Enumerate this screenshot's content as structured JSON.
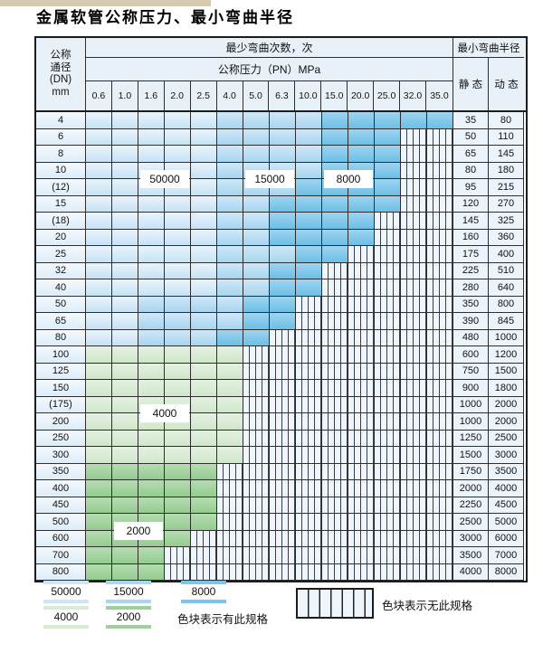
{
  "title": "金属软管公称压力、最小弯曲半径",
  "table": {
    "header": {
      "dn": [
        "公称",
        "通径",
        "(DN)",
        "mm"
      ],
      "bend_times": "最少弯曲次数，次",
      "pressure_unit": "公称压力（PN）MPa",
      "min_radius": "最小弯曲半径",
      "static_label": "静 态",
      "dynamic_label": "动 态",
      "pressures": [
        "0.6",
        "1.0",
        "1.6",
        "2.0",
        "2.5",
        "4.0",
        "5.0",
        "6.3",
        "10.0",
        "15.0",
        "20.0",
        "25.0",
        "32.0",
        "35.0"
      ]
    },
    "band_legend_meaning": {
      "b50": "50000",
      "b15": "15000",
      "b8": "8000",
      "g4": "4000",
      "g2": "2000",
      "x": "无此规格"
    },
    "rows": [
      {
        "dn": "4",
        "static": "35",
        "dynamic": "80",
        "bands": [
          [
            "b50",
            5
          ],
          [
            "b15",
            4
          ],
          [
            "b8",
            5
          ]
        ]
      },
      {
        "dn": "6",
        "static": "50",
        "dynamic": "110",
        "bands": [
          [
            "b50",
            5
          ],
          [
            "b15",
            4
          ],
          [
            "b8",
            3
          ],
          [
            "x",
            2
          ]
        ]
      },
      {
        "dn": "8",
        "static": "65",
        "dynamic": "145",
        "bands": [
          [
            "b50",
            5
          ],
          [
            "b15",
            4
          ],
          [
            "b8",
            3
          ],
          [
            "x",
            2
          ]
        ]
      },
      {
        "dn": "10",
        "static": "80",
        "dynamic": "180",
        "bands": [
          [
            "b50",
            5
          ],
          [
            "b15",
            4
          ],
          [
            "b8",
            3
          ],
          [
            "x",
            2
          ]
        ]
      },
      {
        "dn": "(12)",
        "static": "95",
        "dynamic": "215",
        "bands": [
          [
            "b50",
            5
          ],
          [
            "b15",
            3
          ],
          [
            "b8",
            4
          ],
          [
            "x",
            2
          ]
        ]
      },
      {
        "dn": "15",
        "static": "120",
        "dynamic": "270",
        "bands": [
          [
            "b50",
            5
          ],
          [
            "b15",
            2
          ],
          [
            "b8",
            5
          ],
          [
            "x",
            2
          ]
        ]
      },
      {
        "dn": "(18)",
        "static": "145",
        "dynamic": "325",
        "bands": [
          [
            "b50",
            5
          ],
          [
            "b15",
            2
          ],
          [
            "b8",
            4
          ],
          [
            "x",
            3
          ]
        ]
      },
      {
        "dn": "20",
        "static": "160",
        "dynamic": "360",
        "bands": [
          [
            "b50",
            5
          ],
          [
            "b15",
            2
          ],
          [
            "b8",
            4
          ],
          [
            "x",
            3
          ]
        ]
      },
      {
        "dn": "25",
        "static": "175",
        "dynamic": "400",
        "bands": [
          [
            "b50",
            5
          ],
          [
            "b15",
            3
          ],
          [
            "b8",
            2
          ],
          [
            "x",
            4
          ]
        ]
      },
      {
        "dn": "32",
        "static": "225",
        "dynamic": "510",
        "bands": [
          [
            "b50",
            5
          ],
          [
            "b15",
            2
          ],
          [
            "b8",
            2
          ],
          [
            "x",
            5
          ]
        ]
      },
      {
        "dn": "40",
        "static": "280",
        "dynamic": "640",
        "bands": [
          [
            "b50",
            5
          ],
          [
            "b15",
            2
          ],
          [
            "b8",
            2
          ],
          [
            "x",
            5
          ]
        ]
      },
      {
        "dn": "50",
        "static": "350",
        "dynamic": "800",
        "bands": [
          [
            "b50",
            2
          ],
          [
            "b15",
            4
          ],
          [
            "b8",
            2
          ],
          [
            "x",
            6
          ]
        ]
      },
      {
        "dn": "65",
        "static": "390",
        "dynamic": "845",
        "bands": [
          [
            "b50",
            2
          ],
          [
            "b15",
            4
          ],
          [
            "b8",
            2
          ],
          [
            "x",
            6
          ]
        ]
      },
      {
        "dn": "80",
        "static": "480",
        "dynamic": "1000",
        "bands": [
          [
            "b50",
            2
          ],
          [
            "b15",
            3
          ],
          [
            "b8",
            2
          ],
          [
            "x",
            7
          ]
        ]
      },
      {
        "dn": "100",
        "static": "600",
        "dynamic": "1200",
        "bands": [
          [
            "g4",
            6
          ],
          [
            "x",
            8
          ]
        ]
      },
      {
        "dn": "125",
        "static": "750",
        "dynamic": "1500",
        "bands": [
          [
            "g4",
            6
          ],
          [
            "x",
            8
          ]
        ]
      },
      {
        "dn": "150",
        "static": "900",
        "dynamic": "1800",
        "bands": [
          [
            "g4",
            6
          ],
          [
            "x",
            8
          ]
        ]
      },
      {
        "dn": "(175)",
        "static": "1000",
        "dynamic": "2000",
        "bands": [
          [
            "g4",
            6
          ],
          [
            "x",
            8
          ]
        ]
      },
      {
        "dn": "200",
        "static": "1000",
        "dynamic": "2000",
        "bands": [
          [
            "g4",
            6
          ],
          [
            "x",
            8
          ]
        ]
      },
      {
        "dn": "250",
        "static": "1250",
        "dynamic": "2500",
        "bands": [
          [
            "g4",
            6
          ],
          [
            "x",
            8
          ]
        ]
      },
      {
        "dn": "300",
        "static": "1500",
        "dynamic": "3000",
        "bands": [
          [
            "g4",
            6
          ],
          [
            "x",
            8
          ]
        ]
      },
      {
        "dn": "350",
        "static": "1750",
        "dynamic": "3500",
        "bands": [
          [
            "g2",
            5
          ],
          [
            "x",
            9
          ]
        ]
      },
      {
        "dn": "400",
        "static": "2000",
        "dynamic": "4000",
        "bands": [
          [
            "g2",
            5
          ],
          [
            "x",
            9
          ]
        ]
      },
      {
        "dn": "450",
        "static": "2250",
        "dynamic": "4500",
        "bands": [
          [
            "g2",
            5
          ],
          [
            "x",
            9
          ]
        ]
      },
      {
        "dn": "500",
        "static": "2500",
        "dynamic": "5000",
        "bands": [
          [
            "g2",
            5
          ],
          [
            "x",
            9
          ]
        ]
      },
      {
        "dn": "600",
        "static": "3000",
        "dynamic": "6000",
        "bands": [
          [
            "g2",
            4
          ],
          [
            "x",
            10
          ]
        ]
      },
      {
        "dn": "700",
        "static": "3500",
        "dynamic": "7000",
        "bands": [
          [
            "g2",
            3
          ],
          [
            "x",
            11
          ]
        ]
      },
      {
        "dn": "800",
        "static": "4000",
        "dynamic": "8000",
        "bands": [
          [
            "g2",
            3
          ],
          [
            "x",
            11
          ]
        ]
      }
    ],
    "overlay_labels": [
      {
        "text": "50000",
        "row": 3,
        "col": 2,
        "span": 2
      },
      {
        "text": "15000",
        "row": 3,
        "col": 6,
        "span": 2
      },
      {
        "text": "8000",
        "row": 3,
        "col": 9,
        "span": 2
      },
      {
        "text": "4000",
        "row": 17,
        "col": 2,
        "span": 2
      },
      {
        "text": "2000",
        "row": 24,
        "col": 1,
        "span": 2
      }
    ]
  },
  "legend": {
    "swatches": [
      {
        "label": "50000",
        "color": "#cfe6f7"
      },
      {
        "label": "15000",
        "color": "#a9d6f0"
      },
      {
        "label": "8000",
        "color": "#7cc4ea"
      },
      {
        "label": "4000",
        "color": "#d9ecd4"
      },
      {
        "label": "2000",
        "color": "#9ed09a"
      }
    ],
    "has_spec_text": "色块表示有此规格",
    "no_spec_text": "色块表示无此规格"
  },
  "colors": {
    "band_50000": "#cfe6f7",
    "band_15000": "#a9d6f0",
    "band_8000": "#7cc4ea",
    "band_4000": "#d9ecd4",
    "band_2000": "#9ed09a",
    "header_bg": "#e9f1f8",
    "border": "#1c1c1c"
  }
}
